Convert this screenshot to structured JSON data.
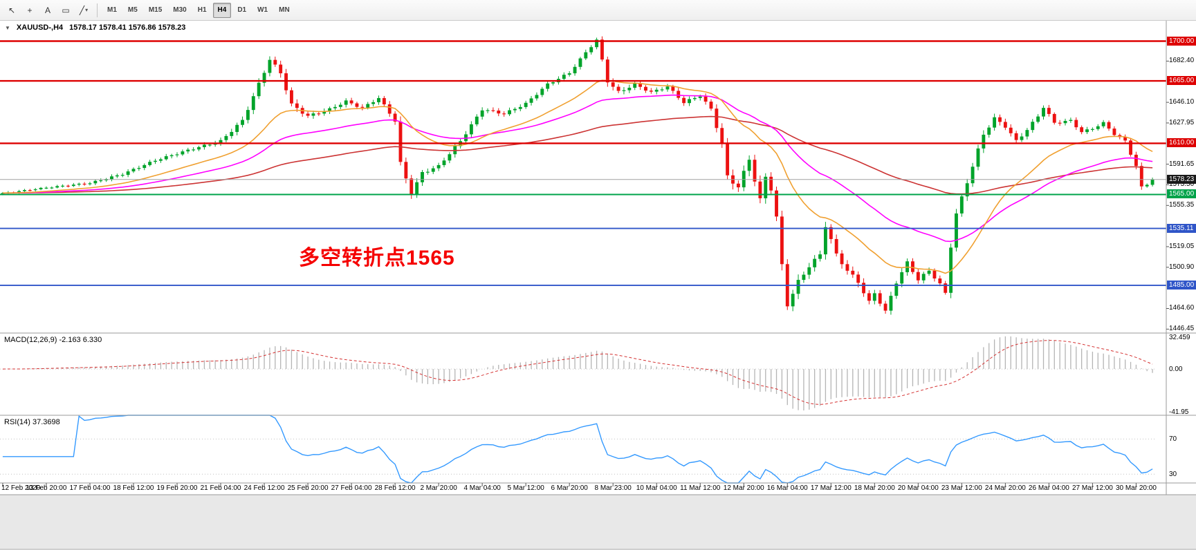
{
  "toolbar": {
    "tools": [
      {
        "name": "cursor-tool-icon",
        "glyph": "↖"
      },
      {
        "name": "crosshair-tool-icon",
        "glyph": "+"
      },
      {
        "name": "text-tool-icon",
        "glyph": "A"
      },
      {
        "name": "label-tool-icon",
        "glyph": "▭"
      },
      {
        "name": "shapes-dropdown-icon",
        "glyph": "╱",
        "caret": "▾"
      }
    ],
    "timeframes": [
      {
        "label": "M1"
      },
      {
        "label": "M5"
      },
      {
        "label": "M15"
      },
      {
        "label": "M30"
      },
      {
        "label": "H1"
      },
      {
        "label": "H4",
        "active": true
      },
      {
        "label": "D1"
      },
      {
        "label": "W1"
      },
      {
        "label": "MN"
      }
    ]
  },
  "chart": {
    "header": {
      "collapse_icon": "▼",
      "symbol": "XAUUSD-,H4",
      "ohlc": "1578.17 1578.41 1576.86 1578.23"
    },
    "annotation": {
      "text": "多空转折点1565",
      "color": "#F50000"
    },
    "panels": {
      "macd": {
        "title": "MACD(12,26,9)",
        "values": "-2.163 6.330",
        "scale": [
          {
            "label": "32.459",
            "value": 32.459
          },
          {
            "label": "0.00",
            "value": 0
          },
          {
            "label": "-41.95",
            "value": -41.95
          }
        ]
      },
      "rsi": {
        "title": "RSI(14)",
        "value": "37.3698",
        "levels": [
          {
            "label": "70",
            "value": 70
          },
          {
            "label": "30",
            "value": 30
          }
        ]
      }
    },
    "price_scale": {
      "ticks": [
        {
          "label": "1682.40",
          "value": 1682.4
        },
        {
          "label": "1646.10",
          "value": 1646.1
        },
        {
          "label": "1627.95",
          "value": 1627.95
        },
        {
          "label": "1591.65",
          "value": 1591.65
        },
        {
          "label": "1573.50",
          "value": 1573.5
        },
        {
          "label": "1555.35",
          "value": 1555.35
        },
        {
          "label": "1519.05",
          "value": 1519.05
        },
        {
          "label": "1500.90",
          "value": 1500.9
        },
        {
          "label": "1464.60",
          "value": 1464.6
        },
        {
          "label": "1446.45",
          "value": 1446.45
        }
      ],
      "badges": [
        {
          "label": "1700.00",
          "value": 1700.0,
          "color": "#DD0000",
          "kind": "resistance"
        },
        {
          "label": "1665.00",
          "value": 1665.0,
          "color": "#DD0000",
          "kind": "resistance"
        },
        {
          "label": "1610.00",
          "value": 1610.0,
          "color": "#DD0000",
          "kind": "resistance"
        },
        {
          "label": "1578.23",
          "value": 1578.23,
          "color": "#1A1A1A",
          "kind": "current"
        },
        {
          "label": "1565.00",
          "value": 1565.0,
          "color": "#00A34A",
          "kind": "pivot"
        },
        {
          "label": "1535.11",
          "value": 1535.11,
          "color": "#2F55C8",
          "kind": "support"
        },
        {
          "label": "1485.00",
          "value": 1485.0,
          "color": "#2F55C8",
          "kind": "support"
        }
      ]
    }
  },
  "chart_data": {
    "type": "candlestick",
    "symbol": "XAUUSD-",
    "timeframe": "H4",
    "current_bar": {
      "open": 1578.17,
      "high": 1578.41,
      "low": 1576.86,
      "close": 1578.23
    },
    "price_axis_range": [
      1443,
      1707
    ],
    "horizontal_levels": [
      1700.0,
      1665.0,
      1610.0,
      1565.0,
      1535.11,
      1485.0
    ],
    "indicators": {
      "macd": {
        "params": [
          12,
          26,
          9
        ],
        "current_values": [
          -2.163,
          6.33
        ],
        "scale_max": 32.459,
        "scale_min": -41.95
      },
      "rsi": {
        "period": 14,
        "current_value": 37.3698,
        "levels": [
          70,
          30
        ]
      }
    },
    "colors": {
      "bull": "#00A32A",
      "bear": "#EC1111",
      "ma_fast": "#F0A030",
      "ma_mid": "#FF00FF",
      "ma_slow": "#CC3333",
      "macd_hist": "#B4B4B4",
      "macd_signal": "#D43030",
      "rsi_line": "#3399FF"
    },
    "n_candles": 212,
    "x_labels": [
      "12 Feb 2020",
      "13 Feb 20:00",
      "17 Feb 04:00",
      "18 Feb 12:00",
      "19 Feb 20:00",
      "21 Feb 04:00",
      "24 Feb 12:00",
      "25 Feb 20:00",
      "27 Feb 04:00",
      "28 Feb 12:00",
      "2 Mar 20:00",
      "4 Mar 04:00",
      "5 Mar 12:00",
      "6 Mar 20:00",
      "8 Mar 23:00",
      "10 Mar 04:00",
      "11 Mar 12:00",
      "12 Mar 20:00",
      "16 Mar 04:00",
      "17 Mar 12:00",
      "18 Mar 20:00",
      "20 Mar 04:00",
      "23 Mar 12:00",
      "24 Mar 20:00",
      "26 Mar 04:00",
      "27 Mar 12:00",
      "30 Mar 20:00"
    ],
    "close_anchors_idx_price_vol": [
      [
        0,
        1566,
        1.5
      ],
      [
        8,
        1571,
        1.5
      ],
      [
        16,
        1575,
        2
      ],
      [
        22,
        1583,
        2.5
      ],
      [
        28,
        1595,
        2.5
      ],
      [
        34,
        1604,
        2.5
      ],
      [
        40,
        1612,
        3
      ],
      [
        44,
        1630,
        4
      ],
      [
        47,
        1662,
        5
      ],
      [
        49,
        1684,
        4
      ],
      [
        51,
        1672,
        5
      ],
      [
        53,
        1644,
        5
      ],
      [
        56,
        1634,
        3.5
      ],
      [
        60,
        1640,
        3
      ],
      [
        63,
        1647,
        3
      ],
      [
        66,
        1641,
        3
      ],
      [
        69,
        1650,
        3
      ],
      [
        72,
        1630,
        4
      ],
      [
        73,
        1592,
        6
      ],
      [
        75,
        1566,
        5
      ],
      [
        77,
        1584,
        4
      ],
      [
        80,
        1590,
        3
      ],
      [
        84,
        1612,
        4
      ],
      [
        88,
        1640,
        3.5
      ],
      [
        92,
        1636,
        3
      ],
      [
        96,
        1645,
        3
      ],
      [
        100,
        1662,
        3
      ],
      [
        104,
        1672,
        3
      ],
      [
        107,
        1690,
        3
      ],
      [
        109,
        1701,
        2.5
      ],
      [
        111,
        1665,
        5
      ],
      [
        113,
        1655,
        4
      ],
      [
        116,
        1662,
        3.5
      ],
      [
        119,
        1655,
        3
      ],
      [
        122,
        1660,
        3
      ],
      [
        125,
        1646,
        3.5
      ],
      [
        128,
        1652,
        3
      ],
      [
        130,
        1640,
        4
      ],
      [
        132,
        1610,
        6
      ],
      [
        133,
        1580,
        7
      ],
      [
        135,
        1572,
        6
      ],
      [
        137,
        1596,
        6
      ],
      [
        139,
        1560,
        7
      ],
      [
        140,
        1580,
        6
      ],
      [
        141,
        1570,
        5
      ],
      [
        142,
        1545,
        6
      ],
      [
        143,
        1502,
        7
      ],
      [
        144,
        1468,
        6
      ],
      [
        146,
        1488,
        6
      ],
      [
        148,
        1502,
        5
      ],
      [
        150,
        1512,
        5
      ],
      [
        151,
        1538,
        6
      ],
      [
        153,
        1512,
        5
      ],
      [
        155,
        1498,
        5
      ],
      [
        157,
        1488,
        5
      ],
      [
        159,
        1470,
        5
      ],
      [
        160,
        1478,
        4
      ],
      [
        162,
        1462,
        4
      ],
      [
        164,
        1488,
        5
      ],
      [
        166,
        1505,
        4
      ],
      [
        168,
        1490,
        4
      ],
      [
        170,
        1498,
        3.5
      ],
      [
        172,
        1486,
        3.5
      ],
      [
        173,
        1478,
        3
      ],
      [
        174,
        1520,
        6
      ],
      [
        175,
        1548,
        5
      ],
      [
        176,
        1562,
        5
      ],
      [
        178,
        1590,
        5
      ],
      [
        180,
        1618,
        5
      ],
      [
        182,
        1632,
        4
      ],
      [
        184,
        1625,
        4
      ],
      [
        186,
        1612,
        4
      ],
      [
        188,
        1622,
        3.5
      ],
      [
        190,
        1634,
        3
      ],
      [
        191,
        1642,
        3.5
      ],
      [
        193,
        1628,
        3
      ],
      [
        196,
        1630,
        3
      ],
      [
        198,
        1620,
        3
      ],
      [
        200,
        1623,
        2.5
      ],
      [
        202,
        1628,
        2.5
      ],
      [
        204,
        1618,
        2.5
      ],
      [
        206,
        1612,
        3
      ],
      [
        208,
        1590,
        4
      ],
      [
        209,
        1571,
        4
      ],
      [
        210,
        1574,
        2.5
      ],
      [
        211,
        1578.23,
        2
      ]
    ]
  }
}
